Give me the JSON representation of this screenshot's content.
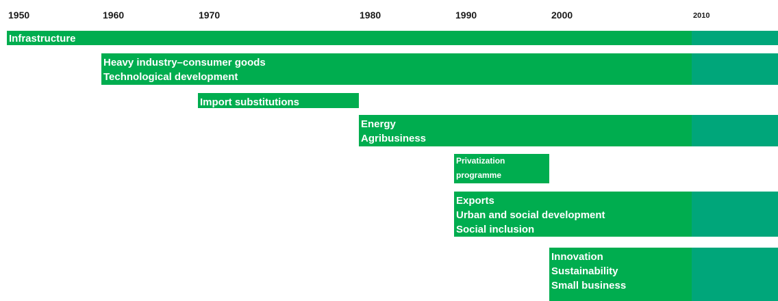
{
  "years": [
    "1950",
    "1960",
    "1970",
    "1980",
    "1990",
    "2000",
    "2010"
  ],
  "bars": [
    {
      "lines": [
        "Infrastructure"
      ]
    },
    {
      "lines": [
        "Heavy industry–consumer goods",
        "Technological development"
      ]
    },
    {
      "lines": [
        "Import substitutions"
      ]
    },
    {
      "lines": [
        "Energy",
        "Agribusiness"
      ]
    },
    {
      "lines": [
        "Privatization",
        "programme"
      ]
    },
    {
      "lines": [
        "Exports",
        "Urban and social development",
        "Social inclusion"
      ]
    },
    {
      "lines": [
        "Innovation",
        "Sustainability",
        "Small business"
      ]
    }
  ]
}
